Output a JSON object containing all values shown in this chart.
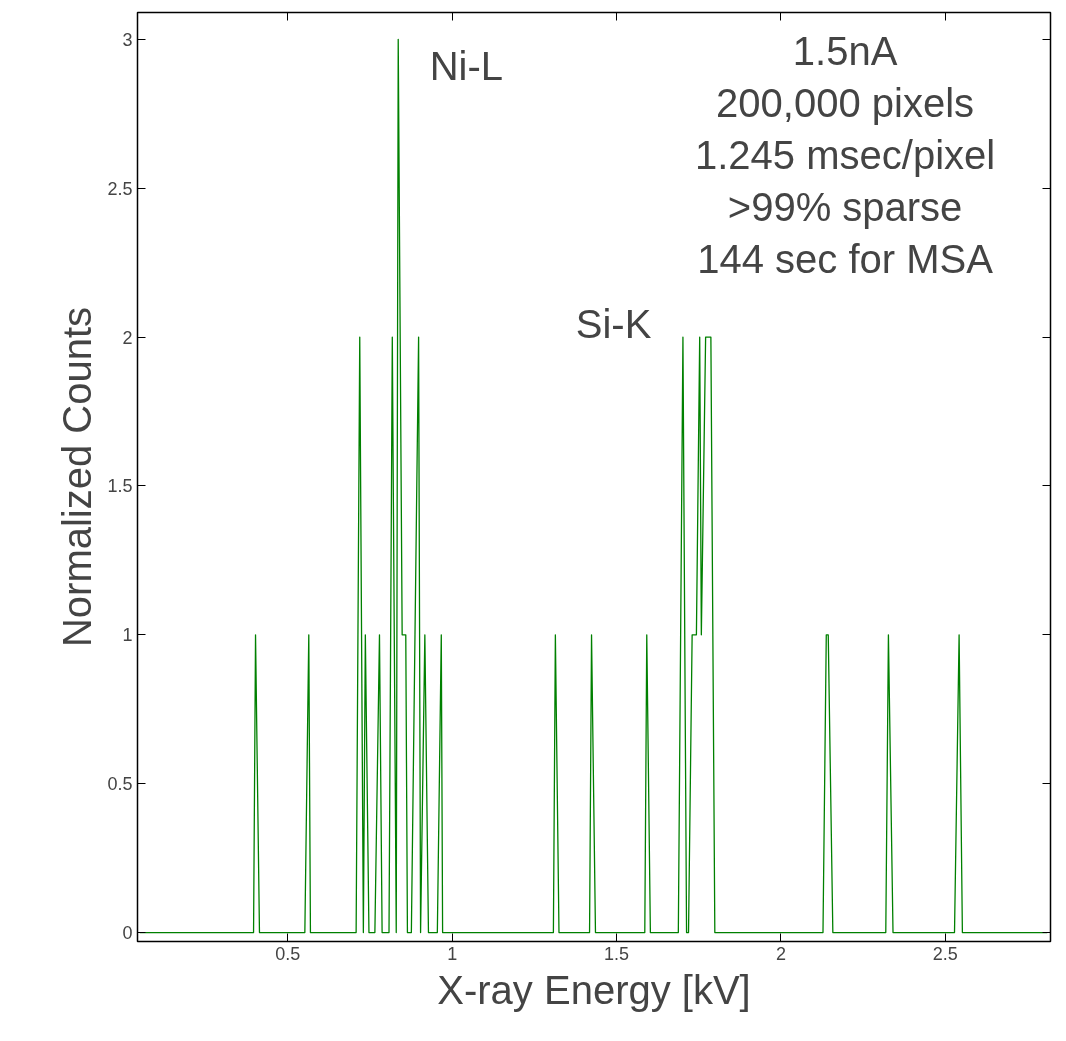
{
  "chart_data": {
    "type": "line",
    "xlabel": "X-ray Energy [kV]",
    "ylabel": "Normalized Counts",
    "x": [
      0.05,
      0.396,
      0.402,
      0.414,
      0.552,
      0.564,
      0.569,
      0.708,
      0.719,
      0.73,
      0.736,
      0.747,
      0.765,
      0.779,
      0.787,
      0.808,
      0.818,
      0.83,
      0.836,
      0.848,
      0.859,
      0.864,
      0.876,
      0.898,
      0.904,
      0.917,
      0.928,
      0.955,
      0.967,
      0.971,
      1.308,
      1.314,
      1.325,
      1.418,
      1.424,
      1.436,
      1.586,
      1.592,
      1.603,
      1.688,
      1.702,
      1.713,
      1.719,
      1.73,
      1.743,
      1.753,
      1.758,
      1.771,
      1.787,
      1.799,
      2.128,
      2.138,
      2.144,
      2.158,
      2.319,
      2.327,
      2.341,
      2.528,
      2.542,
      2.552,
      2.81
    ],
    "series": [
      {
        "color": "#008000",
        "values": [
          0,
          0,
          1,
          0,
          0,
          1,
          0,
          0,
          2,
          0,
          1,
          0,
          0,
          1,
          0,
          0,
          2,
          0,
          3,
          1,
          1,
          0,
          0,
          2,
          0,
          1,
          0,
          0,
          1,
          0,
          0,
          1,
          0,
          0,
          1,
          0,
          0,
          1,
          0,
          0,
          2,
          0,
          0,
          1,
          1,
          2,
          1,
          2,
          2,
          0,
          0,
          1,
          1,
          0,
          0,
          1,
          0,
          0,
          1,
          0,
          0
        ]
      }
    ],
    "xlim": [
      0.043,
      2.82
    ],
    "ylim": [
      -0.03,
      3.09
    ],
    "xticks": [
      0.5,
      1,
      1.5,
      2,
      2.5
    ],
    "yticks": [
      0,
      0.5,
      1,
      1.5,
      2,
      2.5,
      3
    ],
    "grid": false,
    "marker": "none",
    "line_style": "solid",
    "annotations": [
      "Ni-L",
      "Si-K",
      "1.5nA",
      "200,000 pixels",
      "1.245 msec/pixel",
      ">99% sparse",
      "144 sec for MSA"
    ]
  }
}
